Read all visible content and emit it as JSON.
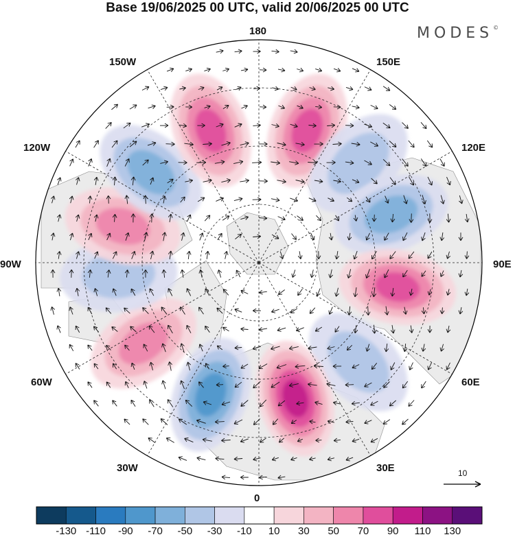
{
  "title": "Base 19/06/2025 00 UTC, valid 20/06/2025 00 UTC",
  "brand": "MODES",
  "brand_mark": "©",
  "map": {
    "projection": "north-polar-stereographic",
    "labels": {
      "lon_180": "180",
      "lon_150e": "150E",
      "lon_120e": "120E",
      "lon_90e": "90E",
      "lon_60e": "60E",
      "lon_30e": "30E",
      "lon_0": "0",
      "lon_30w": "30W",
      "lon_60w": "60W",
      "lon_90w": "90W",
      "lon_120w": "120W",
      "lon_150w": "150W"
    },
    "anomaly_centers": [
      {
        "lon": 160,
        "sign": "positive",
        "peak": 70
      },
      {
        "lon": 135,
        "sign": "negative",
        "peak": -40
      },
      {
        "lon": 110,
        "sign": "negative",
        "peak": -60
      },
      {
        "lon": 80,
        "sign": "positive",
        "peak": 80
      },
      {
        "lon": 45,
        "sign": "negative",
        "peak": -40
      },
      {
        "lon": 15,
        "sign": "positive",
        "peak": 100
      },
      {
        "lon": -20,
        "sign": "negative",
        "peak": -80
      },
      {
        "lon": -55,
        "sign": "positive",
        "peak": 60
      },
      {
        "lon": -85,
        "sign": "negative",
        "peak": -30
      },
      {
        "lon": -105,
        "sign": "positive",
        "peak": 60
      },
      {
        "lon": -130,
        "sign": "negative",
        "peak": -60
      },
      {
        "lon": -160,
        "sign": "positive",
        "peak": 80
      }
    ],
    "reference_vector": "10"
  },
  "colorbar": {
    "tick_labels": [
      "-130",
      "-110",
      "-90",
      "-70",
      "-50",
      "-30",
      "-10",
      "10",
      "30",
      "50",
      "70",
      "90",
      "110",
      "130"
    ],
    "colors": [
      "#0d3b5e",
      "#15598c",
      "#2a7bbf",
      "#4f97cc",
      "#7fb0da",
      "#b0c6e6",
      "#dadcf0",
      "#ffffff",
      "#f7d6dc",
      "#f3b4c3",
      "#ee86ab",
      "#e04e9c",
      "#c21c8b",
      "#8c1283",
      "#5a0f78"
    ]
  }
}
